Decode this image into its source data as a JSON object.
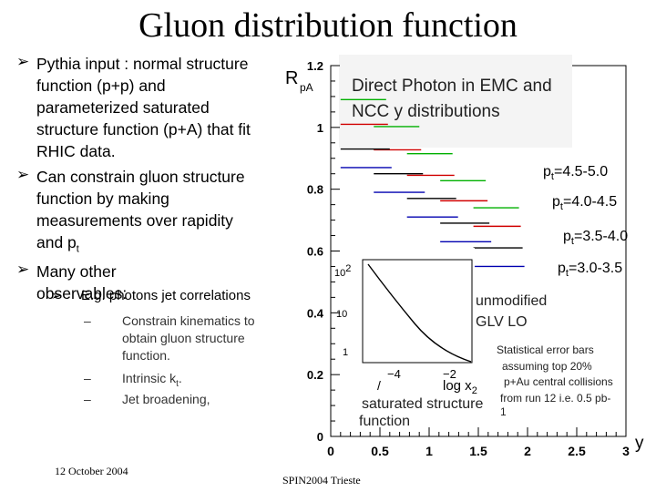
{
  "title": "Gluon distribution function",
  "bullets": [
    {
      "lines": [
        "Pythia input : normal structure",
        "function (p+p) and",
        "parameterized saturated",
        "structure function (p+A) that fit",
        "RHIC data."
      ]
    },
    {
      "lines": [
        "Can constrain gluon structure",
        "function by making",
        "measurements over rapidity",
        "and p"
      ],
      "last_suffix": "t"
    },
    {
      "lines": [
        "Many other observables:"
      ]
    }
  ],
  "sub_bullet": "E.g. photons jet correlations",
  "dashes": [
    {
      "lines": [
        "Constrain kinematics to",
        "obtain gluon structure",
        "function."
      ]
    },
    {
      "text": "Intrinsic k",
      "suffix": "t",
      "tail": "."
    },
    {
      "text": "Jet broadening,"
    }
  ],
  "footer": {
    "date": "12 October 2004",
    "venue": "SPIN2004 Trieste"
  },
  "chart_data": {
    "type": "line",
    "title": "Direct Photon in EMC and NCC y distributions",
    "title_lines": [
      "Direct Photon in EMC and",
      "NCC y distributions"
    ],
    "ylabel_main": "R",
    "ylabel_sub": "pA",
    "xlabel": "y",
    "xlim": [
      0,
      3
    ],
    "ylim": [
      0,
      1.2
    ],
    "xticks": [
      "0",
      "0.5",
      "1",
      "1.5",
      "2",
      "2.5",
      "3"
    ],
    "yticks": [
      "0",
      "0.2",
      "0.4",
      "0.6",
      "0.8",
      "1",
      "1.2"
    ],
    "series": [
      {
        "name": "pt=4.5-5.0",
        "label_main": "p",
        "label_sub": "t",
        "label_tail": "=4.5-5.0",
        "color": "#00b000",
        "points": [
          [
            0.1,
            1.09
          ],
          [
            1.45,
            0.74
          ]
        ]
      },
      {
        "name": "pt=4.0-4.5",
        "label_main": "p",
        "label_sub": "t",
        "label_tail": "=4.0-4.5",
        "color": "#d00000",
        "points": [
          [
            0.1,
            1.01
          ],
          [
            1.45,
            0.68
          ]
        ]
      },
      {
        "name": "pt=3.5-4.0",
        "label_main": "p",
        "label_sub": "t",
        "label_tail": "=3.5-4.0",
        "color": "#000000",
        "points": [
          [
            0.1,
            0.93
          ],
          [
            1.45,
            0.61
          ]
        ]
      },
      {
        "name": "pt=3.0-3.5",
        "label_main": "p",
        "label_sub": "t",
        "label_tail": "=3.0-3.5",
        "color": "#0000b0",
        "points": [
          [
            0.1,
            0.87
          ],
          [
            1.45,
            0.55
          ]
        ]
      }
    ],
    "annotations": {
      "unmodified": [
        "unmodified",
        "GLV LO"
      ],
      "stat": [
        "Statistical error bars",
        "assuming top 20%",
        "p+Au central collisions",
        "from run 12 i.e. 0.5 pb-",
        "1"
      ],
      "saturated": [
        "saturated structure",
        "function"
      ]
    },
    "inset": {
      "yticks": [
        "10",
        "10",
        "1"
      ],
      "ytick_exps": [
        "2",
        "",
        ""
      ],
      "xticks": [
        "−4",
        "−2"
      ],
      "xlabel": "log x",
      "xlabel_sub": "2",
      "ylabel": "/"
    }
  }
}
